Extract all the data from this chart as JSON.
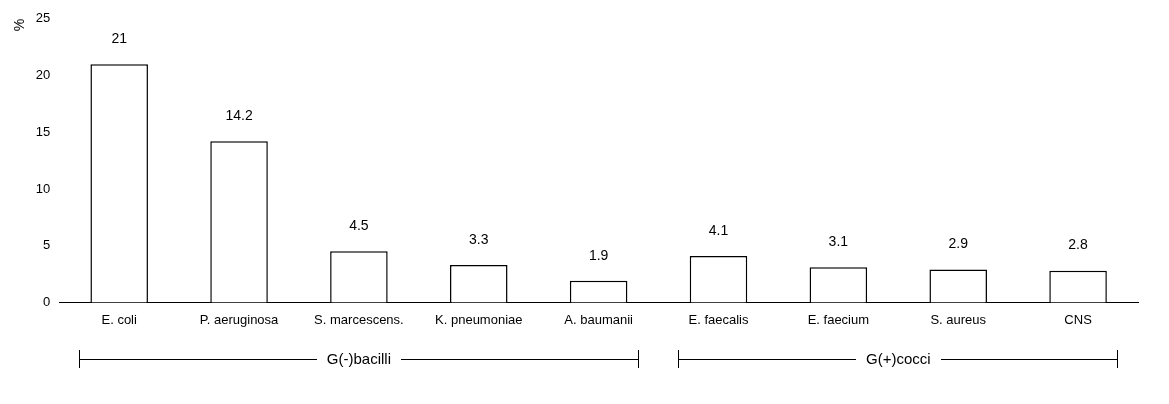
{
  "chart_data": {
    "type": "bar",
    "ylabel": "%",
    "categories": [
      "E. coli",
      "P. aeruginosa",
      "S. marcescens.",
      "K. pneumoniae",
      "A. baumanii",
      "E. faecalis",
      "E. faecium",
      "S. aureus",
      "CNS"
    ],
    "values": [
      21,
      14.2,
      4.5,
      3.3,
      1.9,
      4.1,
      3.1,
      2.9,
      2.8
    ],
    "color": "#ffffff",
    "ylim": [
      0,
      25
    ],
    "yticks": [
      0,
      5,
      10,
      15,
      20,
      25
    ],
    "grid": false,
    "legend": false,
    "data_labels": true,
    "annotations": [
      "G(-)bacilli",
      "G(+)cocci"
    ]
  }
}
